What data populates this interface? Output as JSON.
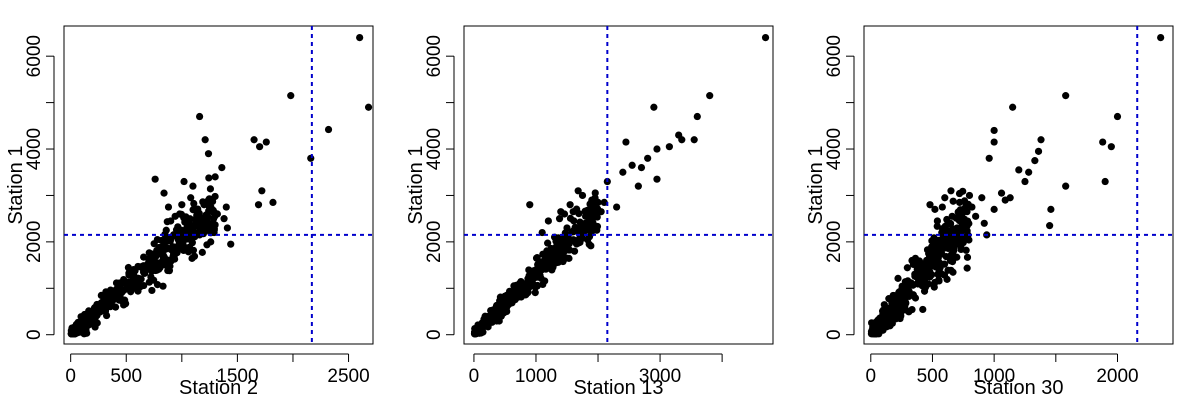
{
  "chart_data": [
    {
      "type": "scatter",
      "xlabel": "Station  2",
      "ylabel": "Station 1",
      "xlim": [
        -60,
        2720
      ],
      "ylim": [
        -200,
        6650
      ],
      "x_ticks": [
        0,
        500,
        1000,
        1500,
        2000,
        2500
      ],
      "x_tick_labels": [
        "0",
        "500",
        "",
        "1500",
        "",
        "2500"
      ],
      "y_ticks": [
        0,
        1000,
        2000,
        3000,
        4000,
        5000,
        6000
      ],
      "y_tick_labels": [
        "0",
        "",
        "2000",
        "",
        "4000",
        "",
        "6000"
      ],
      "threshold_x": 2170,
      "threshold_y": 2150,
      "threshold_color": "#0000cc",
      "point_color": "#000000",
      "cluster": {
        "n": 420,
        "x_max": 1300,
        "slope": 2.05,
        "noise": 230
      },
      "points": [
        [
          2600,
          6400
        ],
        [
          2680,
          4900
        ],
        [
          1980,
          5150
        ],
        [
          2320,
          4420
        ],
        [
          2160,
          3800
        ],
        [
          1700,
          4050
        ],
        [
          1760,
          4150
        ],
        [
          1650,
          4200
        ],
        [
          1720,
          3100
        ],
        [
          1690,
          2800
        ],
        [
          1820,
          2850
        ],
        [
          1400,
          2750
        ],
        [
          1360,
          3600
        ],
        [
          1300,
          3400
        ],
        [
          1240,
          3900
        ],
        [
          1210,
          4200
        ],
        [
          1160,
          4700
        ],
        [
          1100,
          3200
        ],
        [
          1020,
          3300
        ],
        [
          1080,
          2950
        ],
        [
          1200,
          2800
        ],
        [
          1250,
          2900
        ],
        [
          1320,
          2600
        ],
        [
          1410,
          2300
        ],
        [
          1440,
          1950
        ],
        [
          1160,
          2150
        ],
        [
          980,
          2600
        ],
        [
          880,
          2750
        ],
        [
          760,
          3350
        ],
        [
          840,
          3050
        ],
        [
          1050,
          2350
        ],
        [
          1230,
          2550
        ],
        [
          1290,
          2200
        ],
        [
          1380,
          2500
        ],
        [
          960,
          2100
        ],
        [
          900,
          2450
        ],
        [
          1120,
          2700
        ],
        [
          1260,
          2000
        ],
        [
          1200,
          2300
        ],
        [
          1000,
          2800
        ],
        [
          780,
          2050
        ],
        [
          860,
          2250
        ],
        [
          940,
          2550
        ],
        [
          1080,
          2050
        ],
        [
          1140,
          2600
        ]
      ]
    },
    {
      "type": "scatter",
      "xlabel": "Station  13",
      "ylabel": "Station 1",
      "xlim": [
        -160,
        4820
      ],
      "ylim": [
        -200,
        6650
      ],
      "x_ticks": [
        0,
        1000,
        2000,
        3000,
        4000
      ],
      "x_tick_labels": [
        "0",
        "1000",
        "",
        "3000",
        ""
      ],
      "y_ticks": [
        0,
        1000,
        2000,
        3000,
        4000,
        5000,
        6000
      ],
      "y_tick_labels": [
        "0",
        "",
        "2000",
        "",
        "4000",
        "",
        "6000"
      ],
      "threshold_x": 2150,
      "threshold_y": 2150,
      "threshold_color": "#0000cc",
      "point_color": "#000000",
      "cluster": {
        "n": 420,
        "x_max": 2000,
        "slope": 1.3,
        "noise": 170
      },
      "points": [
        [
          4700,
          6400
        ],
        [
          3800,
          5150
        ],
        [
          2900,
          4900
        ],
        [
          3600,
          4700
        ],
        [
          2450,
          4150
        ],
        [
          3150,
          4050
        ],
        [
          2950,
          4000
        ],
        [
          3300,
          4300
        ],
        [
          3350,
          4200
        ],
        [
          3550,
          4200
        ],
        [
          2800,
          3800
        ],
        [
          2550,
          3650
        ],
        [
          2700,
          3600
        ],
        [
          2400,
          3500
        ],
        [
          2650,
          3200
        ],
        [
          2950,
          3350
        ],
        [
          2150,
          3300
        ],
        [
          2300,
          2750
        ],
        [
          2000,
          2850
        ],
        [
          1900,
          2900
        ],
        [
          1950,
          2650
        ],
        [
          2100,
          2850
        ],
        [
          1850,
          2600
        ],
        [
          1750,
          3000
        ],
        [
          1680,
          3100
        ],
        [
          1600,
          2650
        ],
        [
          1550,
          2800
        ],
        [
          1460,
          2600
        ],
        [
          1400,
          2650
        ],
        [
          1200,
          2450
        ],
        [
          1500,
          2300
        ],
        [
          1650,
          2300
        ],
        [
          1800,
          2550
        ],
        [
          1300,
          2100
        ],
        [
          900,
          2800
        ],
        [
          2050,
          2650
        ],
        [
          1720,
          2400
        ],
        [
          1380,
          2500
        ],
        [
          1980,
          2250
        ],
        [
          1100,
          2200
        ]
      ]
    },
    {
      "type": "scatter",
      "xlabel": "Station  30",
      "ylabel": "Station 1",
      "xlim": [
        -55,
        2450
      ],
      "ylim": [
        -200,
        6650
      ],
      "x_ticks": [
        0,
        500,
        1000,
        1500,
        2000
      ],
      "x_tick_labels": [
        "0",
        "500",
        "1000",
        "",
        "2000"
      ],
      "y_ticks": [
        0,
        1000,
        2000,
        3000,
        4000,
        5000,
        6000
      ],
      "y_tick_labels": [
        "0",
        "",
        "2000",
        "",
        "4000",
        "",
        "6000"
      ],
      "threshold_x": 2160,
      "threshold_y": 2150,
      "threshold_color": "#0000cc",
      "point_color": "#000000",
      "cluster": {
        "n": 420,
        "x_max": 800,
        "slope": 3.1,
        "noise": 280
      },
      "points": [
        [
          2350,
          6400
        ],
        [
          1580,
          5150
        ],
        [
          1150,
          4900
        ],
        [
          2000,
          4700
        ],
        [
          1000,
          4400
        ],
        [
          1380,
          4200
        ],
        [
          1880,
          4150
        ],
        [
          1950,
          4050
        ],
        [
          1000,
          4150
        ],
        [
          960,
          3800
        ],
        [
          1360,
          3950
        ],
        [
          1330,
          3750
        ],
        [
          1200,
          3550
        ],
        [
          1280,
          3500
        ],
        [
          1250,
          3300
        ],
        [
          1900,
          3300
        ],
        [
          1580,
          3200
        ],
        [
          1460,
          2700
        ],
        [
          1450,
          2350
        ],
        [
          1130,
          2950
        ],
        [
          1060,
          3050
        ],
        [
          900,
          2950
        ],
        [
          800,
          3000
        ],
        [
          650,
          3100
        ],
        [
          720,
          2850
        ],
        [
          850,
          2550
        ],
        [
          780,
          2650
        ],
        [
          920,
          2400
        ],
        [
          700,
          2300
        ],
        [
          580,
          2750
        ],
        [
          600,
          2950
        ],
        [
          520,
          2700
        ],
        [
          480,
          2800
        ],
        [
          940,
          2150
        ],
        [
          1000,
          2700
        ],
        [
          1090,
          2900
        ],
        [
          820,
          2750
        ],
        [
          760,
          2450
        ],
        [
          660,
          2550
        ],
        [
          540,
          2450
        ]
      ]
    }
  ]
}
